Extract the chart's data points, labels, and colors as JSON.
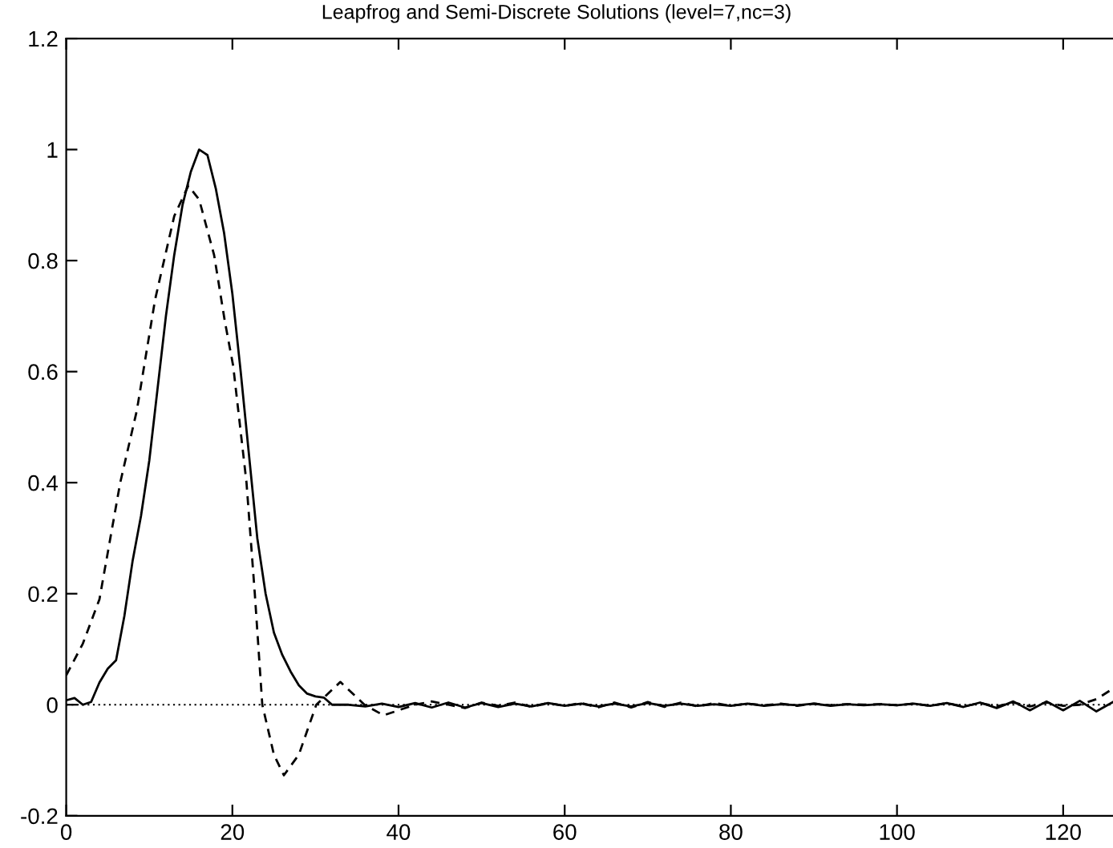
{
  "chart_data": {
    "type": "line",
    "title": "Leapfrog and Semi-Discrete Solutions (level=7,nc=3)",
    "xlim": [
      0,
      126
    ],
    "ylim": [
      -0.2,
      1.2
    ],
    "xticks": [
      0,
      20,
      40,
      60,
      80,
      100,
      120
    ],
    "yticks": [
      -0.2,
      0,
      0.2,
      0.4,
      0.6,
      0.8,
      1,
      1.2
    ],
    "grid": false,
    "legend": false,
    "marker": "none",
    "series": [
      {
        "color": "#000000",
        "line_style": "solid",
        "x": [
          0,
          1,
          2,
          3,
          4,
          5,
          6,
          7,
          8,
          9,
          10,
          11,
          12,
          13,
          14,
          15,
          16,
          17,
          18,
          19,
          20,
          21,
          22,
          23,
          24,
          25,
          26,
          27,
          28,
          29,
          30,
          31,
          32,
          34,
          36,
          38,
          40,
          42,
          44,
          46,
          48,
          50,
          52,
          54,
          56,
          58,
          60,
          62,
          64,
          66,
          68,
          70,
          72,
          74,
          76,
          78,
          80,
          82,
          84,
          86,
          88,
          90,
          92,
          94,
          96,
          98,
          100,
          102,
          104,
          106,
          108,
          110,
          112,
          114,
          116,
          118,
          120,
          122,
          124,
          126
        ],
        "values": [
          0.008,
          0.012,
          0.0,
          0.005,
          0.04,
          0.065,
          0.08,
          0.16,
          0.26,
          0.34,
          0.44,
          0.57,
          0.7,
          0.81,
          0.9,
          0.96,
          1.0,
          0.99,
          0.93,
          0.85,
          0.74,
          0.6,
          0.45,
          0.3,
          0.2,
          0.13,
          0.09,
          0.06,
          0.035,
          0.02,
          0.015,
          0.013,
          0.0,
          0.0,
          -0.003,
          0.002,
          -0.004,
          0.003,
          -0.005,
          0.004,
          -0.005,
          0.003,
          -0.004,
          0.002,
          -0.003,
          0.003,
          -0.002,
          0.002,
          -0.003,
          0.002,
          -0.003,
          0.003,
          -0.002,
          0.002,
          -0.002,
          0.001,
          -0.002,
          0.002,
          -0.002,
          0.001,
          -0.001,
          0.002,
          -0.002,
          0.001,
          -0.001,
          0.001,
          -0.001,
          0.002,
          -0.002,
          0.003,
          -0.004,
          0.004,
          -0.006,
          0.006,
          -0.01,
          0.006,
          -0.01,
          0.007,
          -0.012,
          0.005
        ]
      },
      {
        "color": "#000000",
        "line_style": "dashed",
        "x": [
          0,
          2,
          4,
          6.5,
          8.5,
          10.7,
          13,
          14.7,
          16,
          17.8,
          19.1,
          20.1,
          21.7,
          22.7,
          23.6,
          25,
          26.2,
          28,
          30.1,
          33,
          35.9,
          38.2,
          40,
          42,
          44,
          46,
          48,
          50,
          52,
          54,
          56,
          58,
          60,
          62,
          64,
          66,
          68,
          70,
          72,
          74,
          76,
          78,
          80,
          82,
          84,
          86,
          88,
          90,
          92,
          94,
          96,
          98,
          100,
          102,
          104,
          106,
          108,
          110,
          112,
          114,
          116,
          118,
          120,
          122,
          124,
          126
        ],
        "values": [
          0.053,
          0.11,
          0.19,
          0.4,
          0.53,
          0.73,
          0.88,
          0.935,
          0.91,
          0.81,
          0.69,
          0.61,
          0.4,
          0.2,
          0.0,
          -0.09,
          -0.127,
          -0.09,
          0.0,
          0.041,
          0.0,
          -0.019,
          -0.01,
          0.0,
          0.006,
          0.0,
          -0.006,
          0.004,
          -0.002,
          0.004,
          -0.004,
          0.003,
          -0.002,
          0.003,
          -0.005,
          0.004,
          -0.005,
          0.005,
          -0.004,
          0.004,
          -0.003,
          0.003,
          -0.002,
          0.002,
          -0.001,
          0.002,
          -0.002,
          0.002,
          -0.001,
          0.001,
          0.0,
          0.001,
          -0.001,
          0.002,
          -0.002,
          0.003,
          -0.003,
          0.003,
          -0.003,
          0.004,
          -0.003,
          0.004,
          -0.002,
          0.0,
          0.01,
          0.029
        ]
      }
    ],
    "ref_lines": [
      {
        "axis": "y",
        "value": 0,
        "label": null,
        "color": "#000000",
        "line_style": "dotted"
      }
    ]
  }
}
